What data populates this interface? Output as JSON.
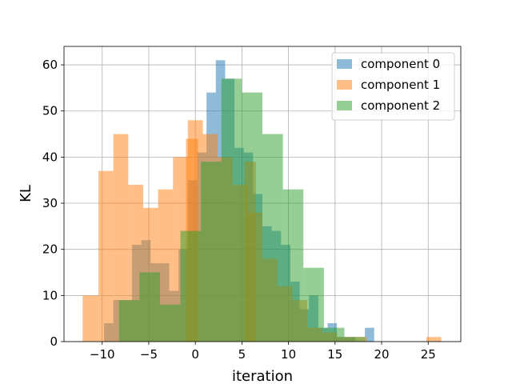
{
  "chart_data": {
    "type": "bar",
    "subtype": "histogram",
    "xlabel": "iteration",
    "ylabel": "KL",
    "xlim": [
      -14.1,
      28.5
    ],
    "ylim": [
      0,
      64
    ],
    "xticks": [
      -10,
      -5,
      0,
      5,
      10,
      15,
      20,
      25
    ],
    "xtick_labels": [
      "−10",
      "−5",
      "0",
      "5",
      "10",
      "15",
      "20",
      "25"
    ],
    "yticks": [
      0,
      10,
      20,
      30,
      40,
      50,
      60
    ],
    "grid": true,
    "legend_position": "top-right",
    "alpha": 0.5,
    "series": [
      {
        "name": "component 0",
        "color": "#1f77b4",
        "bin_edges": [
          -9.8,
          -8.8,
          -7.8,
          -6.8,
          -5.8,
          -4.8,
          -3.8,
          -2.8,
          -1.8,
          -0.8,
          0.2,
          1.2,
          2.2,
          3.2,
          4.2,
          5.2,
          6.2,
          7.2,
          8.2,
          9.2,
          10.2,
          11.2,
          12.2,
          13.2,
          14.2,
          15.2,
          16.2,
          17.2,
          18.2,
          19.2,
          20.2
        ],
        "counts": [
          4,
          9,
          9,
          21,
          22,
          17,
          17,
          11,
          20,
          35,
          41,
          54,
          61,
          57,
          42,
          41,
          32,
          25,
          24,
          21,
          13,
          7,
          10,
          3,
          4,
          1,
          1,
          0,
          3,
          0
        ]
      },
      {
        "name": "component 1",
        "color": "#ff7f0e",
        "bin_edges": [
          -12.1,
          -10.4,
          -8.8,
          -7.2,
          -5.6,
          -4.0,
          -2.4,
          -0.8,
          0.8,
          2.4,
          4.0,
          5.6,
          7.2,
          8.8,
          10.4,
          12.0,
          13.6,
          15.2,
          16.8,
          18.4,
          20.0,
          21.6,
          23.2,
          24.8,
          26.4
        ],
        "counts": [
          10,
          37,
          45,
          34,
          29,
          33,
          40,
          48,
          45,
          40,
          34,
          28,
          18,
          12,
          9,
          3,
          2,
          1,
          1,
          0,
          0,
          0,
          0,
          1
        ],
        "extra_bins": [
          {
            "from": -1.0,
            "to": 0.3,
            "count": 44
          },
          {
            "from": 5.3,
            "to": 6.5,
            "count": 39
          }
        ]
      },
      {
        "name": "component 2",
        "color": "#2ca02c",
        "bin_edges": [
          -8.2,
          -6.0,
          -3.8,
          -1.6,
          0.6,
          2.8,
          5.0,
          7.2,
          9.4,
          11.6,
          13.8,
          16.0,
          18.2
        ],
        "counts": [
          9,
          15,
          8,
          24,
          39,
          57,
          54,
          45,
          33,
          16,
          3,
          1
        ]
      }
    ]
  }
}
